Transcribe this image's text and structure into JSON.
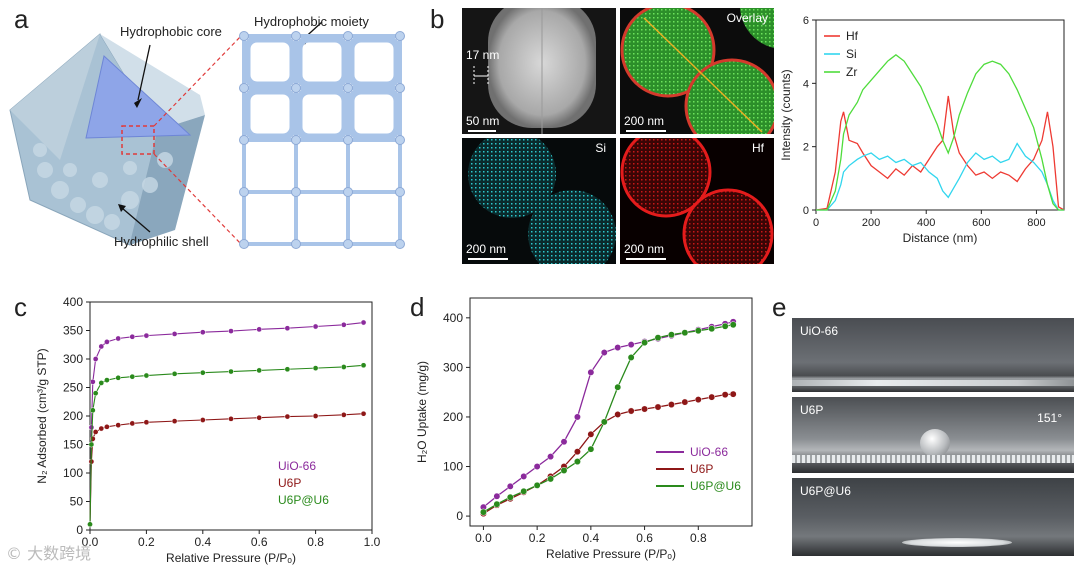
{
  "panels": {
    "a": {
      "letter": "a",
      "labels": {
        "core": "Hydrophobic core",
        "moiety": "Hydrophobic moiety",
        "shell": "Hydrophilic shell"
      }
    },
    "b": {
      "letter": "b",
      "images": [
        {
          "tag": "",
          "scale": "50 nm",
          "note": "17 nm"
        },
        {
          "tag": "Overlay",
          "scale": "200 nm"
        },
        {
          "tag": "Si",
          "scale": "200 nm"
        },
        {
          "tag": "Hf",
          "scale": "200 nm"
        }
      ],
      "profile": {
        "xlabel": "Distance (nm)",
        "ylabel": "Intensity (counts)",
        "legend": [
          "Hf",
          "Si",
          "Zr"
        ],
        "colors": [
          "#ee3a33",
          "#32d6ee",
          "#4fdc3c"
        ]
      }
    },
    "c": {
      "letter": "c"
    },
    "d": {
      "letter": "d"
    },
    "e": {
      "letter": "e",
      "photos": [
        {
          "label": "UiO-66",
          "angle": ""
        },
        {
          "label": "U6P",
          "angle": "151°"
        },
        {
          "label": "U6P@U6",
          "angle": ""
        }
      ]
    }
  },
  "watermark": "© 大数跨境",
  "chart_data": [
    {
      "id": "b-line-profile",
      "type": "line",
      "title": "",
      "xlabel": "Distance (nm)",
      "ylabel": "Intensity (counts)",
      "xlim": [
        0,
        900
      ],
      "ylim": [
        0,
        6
      ],
      "xticks": [
        0,
        200,
        400,
        600,
        800
      ],
      "yticks": [
        0,
        2,
        4,
        6
      ],
      "x": [
        0,
        40,
        70,
        90,
        100,
        120,
        150,
        170,
        200,
        230,
        260,
        290,
        320,
        350,
        380,
        410,
        440,
        460,
        480,
        500,
        520,
        550,
        580,
        610,
        640,
        670,
        700,
        730,
        760,
        790,
        820,
        840,
        860,
        880,
        900
      ],
      "series": [
        {
          "name": "Hf",
          "values": [
            0,
            0.05,
            1.2,
            2.8,
            3.1,
            2.2,
            2.1,
            1.8,
            1.4,
            1.2,
            1.0,
            1.3,
            1.1,
            1.4,
            1.2,
            1.6,
            2.0,
            2.2,
            3.6,
            2.4,
            1.8,
            1.4,
            1.1,
            1.2,
            1.0,
            1.2,
            1.1,
            0.9,
            1.3,
            1.6,
            2.2,
            3.1,
            2.0,
            0.1,
            0
          ]
        },
        {
          "name": "Si",
          "values": [
            0,
            0,
            0.3,
            0.8,
            1.2,
            1.4,
            1.6,
            1.7,
            1.8,
            1.6,
            1.7,
            1.5,
            1.6,
            1.4,
            1.5,
            1.2,
            1.0,
            0.6,
            0.4,
            0.7,
            1.0,
            1.5,
            1.8,
            1.6,
            1.7,
            1.5,
            1.6,
            2.1,
            1.7,
            1.5,
            1.2,
            0.8,
            0.3,
            0,
            0
          ]
        },
        {
          "name": "Zr",
          "values": [
            0,
            0,
            0.6,
            1.6,
            2.4,
            3.0,
            3.4,
            3.8,
            4.1,
            4.4,
            4.7,
            4.9,
            4.7,
            4.3,
            3.9,
            3.3,
            2.7,
            2.2,
            1.8,
            2.3,
            3.0,
            3.7,
            4.3,
            4.6,
            4.7,
            4.6,
            4.3,
            3.8,
            3.2,
            2.6,
            1.6,
            0.8,
            0.2,
            0,
            0
          ]
        }
      ]
    },
    {
      "id": "c-n2-isotherm",
      "type": "scatter",
      "title": "",
      "xlabel": "Relative Pressure (P/Pₒ)",
      "ylabel": "N₂ Adsorbed (cm³/g STP)",
      "xlim": [
        0,
        1.0
      ],
      "ylim": [
        0,
        400
      ],
      "xticks": [
        0.0,
        0.2,
        0.4,
        0.6,
        0.8,
        1.0
      ],
      "yticks": [
        0,
        50,
        100,
        150,
        200,
        250,
        300,
        350,
        400
      ],
      "legend": [
        "UiO-66",
        "U6P",
        "U6P@U6"
      ],
      "colors": [
        "#8b2a9c",
        "#8e1717",
        "#2a8a1c"
      ],
      "x": [
        0.0,
        0.005,
        0.01,
        0.02,
        0.04,
        0.06,
        0.1,
        0.15,
        0.2,
        0.3,
        0.4,
        0.5,
        0.6,
        0.7,
        0.8,
        0.9,
        0.97
      ],
      "series": [
        {
          "name": "UiO-66",
          "values": [
            10,
            180,
            260,
            300,
            322,
            330,
            336,
            339,
            341,
            344,
            347,
            349,
            352,
            354,
            357,
            360,
            364
          ]
        },
        {
          "name": "U6P",
          "values": [
            10,
            120,
            160,
            172,
            178,
            181,
            184,
            187,
            189,
            191,
            193,
            195,
            197,
            199,
            200,
            202,
            204
          ]
        },
        {
          "name": "U6P@U6",
          "values": [
            10,
            150,
            210,
            240,
            258,
            263,
            267,
            269,
            271,
            274,
            276,
            278,
            280,
            282,
            284,
            286,
            289
          ]
        }
      ]
    },
    {
      "id": "d-h2o-isotherm",
      "type": "line",
      "title": "",
      "xlabel": "Relative Pressure (P/Pₒ)",
      "ylabel": "H₂O Uptake (mg/g)",
      "xlim": [
        -0.05,
        1.0
      ],
      "ylim": [
        -20,
        440
      ],
      "xticks": [
        0.0,
        0.2,
        0.4,
        0.6,
        0.8
      ],
      "yticks": [
        0,
        100,
        200,
        300,
        400
      ],
      "legend": [
        "UiO-66",
        "U6P",
        "U6P@U6"
      ],
      "colors": [
        "#8b2a9c",
        "#8e1717",
        "#2a8a1c"
      ],
      "x": [
        0.0,
        0.05,
        0.1,
        0.15,
        0.2,
        0.25,
        0.3,
        0.35,
        0.4,
        0.45,
        0.5,
        0.55,
        0.6,
        0.65,
        0.7,
        0.75,
        0.8,
        0.85,
        0.9,
        0.93
      ],
      "series": [
        {
          "name": "UiO-66",
          "values": [
            18,
            40,
            60,
            80,
            100,
            120,
            150,
            200,
            290,
            330,
            340,
            346,
            352,
            358,
            364,
            370,
            376,
            382,
            388,
            392
          ]
        },
        {
          "name": "U6P",
          "values": [
            5,
            22,
            35,
            48,
            62,
            80,
            100,
            130,
            165,
            190,
            205,
            212,
            216,
            220,
            225,
            230,
            235,
            240,
            245,
            246
          ]
        },
        {
          "name": "U6P@U6",
          "values": [
            8,
            24,
            38,
            50,
            62,
            75,
            92,
            110,
            135,
            190,
            260,
            320,
            350,
            360,
            366,
            370,
            374,
            378,
            383,
            386
          ]
        }
      ]
    }
  ]
}
